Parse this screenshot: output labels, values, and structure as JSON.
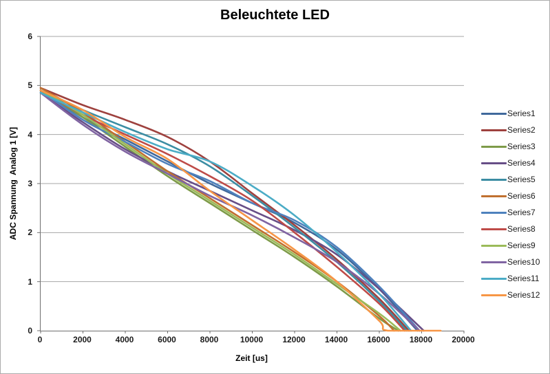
{
  "window": {
    "background": "#FFFFFF",
    "border_color": "#ABABAB"
  },
  "chart_data": {
    "type": "line",
    "title": "Beleuchtete LED",
    "xlabel": "Zeit [us]",
    "ylabel": "ADC Spannung  Analog 1 [V]",
    "xlim": [
      0,
      20000
    ],
    "ylim": [
      0,
      6
    ],
    "xticks": [
      0,
      2000,
      4000,
      6000,
      8000,
      10000,
      12000,
      14000,
      16000,
      18000,
      20000
    ],
    "yticks": [
      0,
      1,
      2,
      3,
      4,
      5,
      6
    ],
    "grid": "horizontal",
    "gridline_color": "#A6A6A6",
    "axis_color": "#6E6E6E",
    "legend_position": "right",
    "line_width": 2.6,
    "series": [
      {
        "name": "Series1",
        "color": "#40699C",
        "x": [
          0,
          2000,
          4000,
          6000,
          8000,
          10000,
          12000,
          14000,
          16000,
          17800
        ],
        "y": [
          4.9,
          4.35,
          3.9,
          3.45,
          3.0,
          2.6,
          2.2,
          1.65,
          0.85,
          0
        ]
      },
      {
        "name": "Series2",
        "color": "#9E413E",
        "x": [
          0,
          2000,
          4000,
          6000,
          8000,
          10000,
          12000,
          14000,
          16000,
          17400
        ],
        "y": [
          4.95,
          4.6,
          4.3,
          3.95,
          3.45,
          2.8,
          2.15,
          1.45,
          0.65,
          0
        ]
      },
      {
        "name": "Series3",
        "color": "#7E9B49",
        "x": [
          0,
          2000,
          4000,
          6000,
          8000,
          10000,
          12000,
          14000,
          16000,
          16900
        ],
        "y": [
          4.9,
          4.35,
          3.75,
          3.15,
          2.6,
          2.05,
          1.5,
          0.9,
          0.25,
          0
        ]
      },
      {
        "name": "Series4",
        "color": "#674E87",
        "x": [
          0,
          2000,
          4000,
          6000,
          8000,
          10000,
          12000,
          14000,
          16000,
          18100
        ],
        "y": [
          4.85,
          4.25,
          3.7,
          3.25,
          2.85,
          2.45,
          2.05,
          1.55,
          0.85,
          0
        ]
      },
      {
        "name": "Series5",
        "color": "#3C8DA3",
        "x": [
          0,
          2000,
          4000,
          6000,
          8000,
          10000,
          12000,
          14000,
          16000,
          17300
        ],
        "y": [
          4.9,
          4.5,
          4.15,
          3.8,
          3.35,
          2.75,
          2.1,
          1.4,
          0.6,
          0
        ]
      },
      {
        "name": "Series6",
        "color": "#C0702F",
        "x": [
          0,
          2000,
          4000,
          6000,
          8000,
          10000,
          12000,
          14000,
          16000,
          16700
        ],
        "y": [
          4.95,
          4.45,
          3.85,
          3.25,
          2.7,
          2.15,
          1.6,
          1.0,
          0.3,
          0
        ]
      },
      {
        "name": "Series7",
        "color": "#4E81BD",
        "x": [
          0,
          2000,
          4000,
          6000,
          8000,
          10000,
          12000,
          14000,
          16000,
          17900
        ],
        "y": [
          4.9,
          4.3,
          3.85,
          3.4,
          3.05,
          2.6,
          2.25,
          1.7,
          0.9,
          0
        ]
      },
      {
        "name": "Series8",
        "color": "#BE4B48",
        "x": [
          0,
          2000,
          4000,
          6000,
          8000,
          10000,
          12000,
          14000,
          16000,
          17200
        ],
        "y": [
          4.9,
          4.4,
          4.0,
          3.6,
          3.15,
          2.65,
          2.0,
          1.3,
          0.55,
          0
        ]
      },
      {
        "name": "Series9",
        "color": "#9BBB59",
        "x": [
          0,
          2000,
          4000,
          6000,
          8000,
          10000,
          12000,
          14000,
          16000,
          17000
        ],
        "y": [
          4.9,
          4.4,
          3.8,
          3.2,
          2.65,
          2.1,
          1.55,
          0.95,
          0.35,
          0
        ]
      },
      {
        "name": "Series10",
        "color": "#8064A2",
        "x": [
          0,
          2000,
          4000,
          6000,
          8000,
          10000,
          12000,
          14000,
          16000,
          17900
        ],
        "y": [
          4.85,
          4.2,
          3.65,
          3.2,
          2.75,
          2.35,
          1.9,
          1.4,
          0.75,
          0
        ]
      },
      {
        "name": "Series11",
        "color": "#4BACC6",
        "x": [
          0,
          2000,
          4000,
          6000,
          8000,
          10000,
          12000,
          14000,
          16000,
          17500
        ],
        "y": [
          4.85,
          4.45,
          4.05,
          3.7,
          3.45,
          2.95,
          2.35,
          1.6,
          0.75,
          0
        ]
      },
      {
        "name": "Series12",
        "color": "#F79646",
        "x": [
          0,
          2000,
          4000,
          6000,
          8000,
          10000,
          12000,
          14000,
          16000,
          16400,
          18900
        ],
        "y": [
          4.9,
          4.5,
          3.95,
          3.5,
          2.85,
          2.25,
          1.65,
          1.0,
          0.2,
          0,
          0
        ]
      }
    ]
  }
}
